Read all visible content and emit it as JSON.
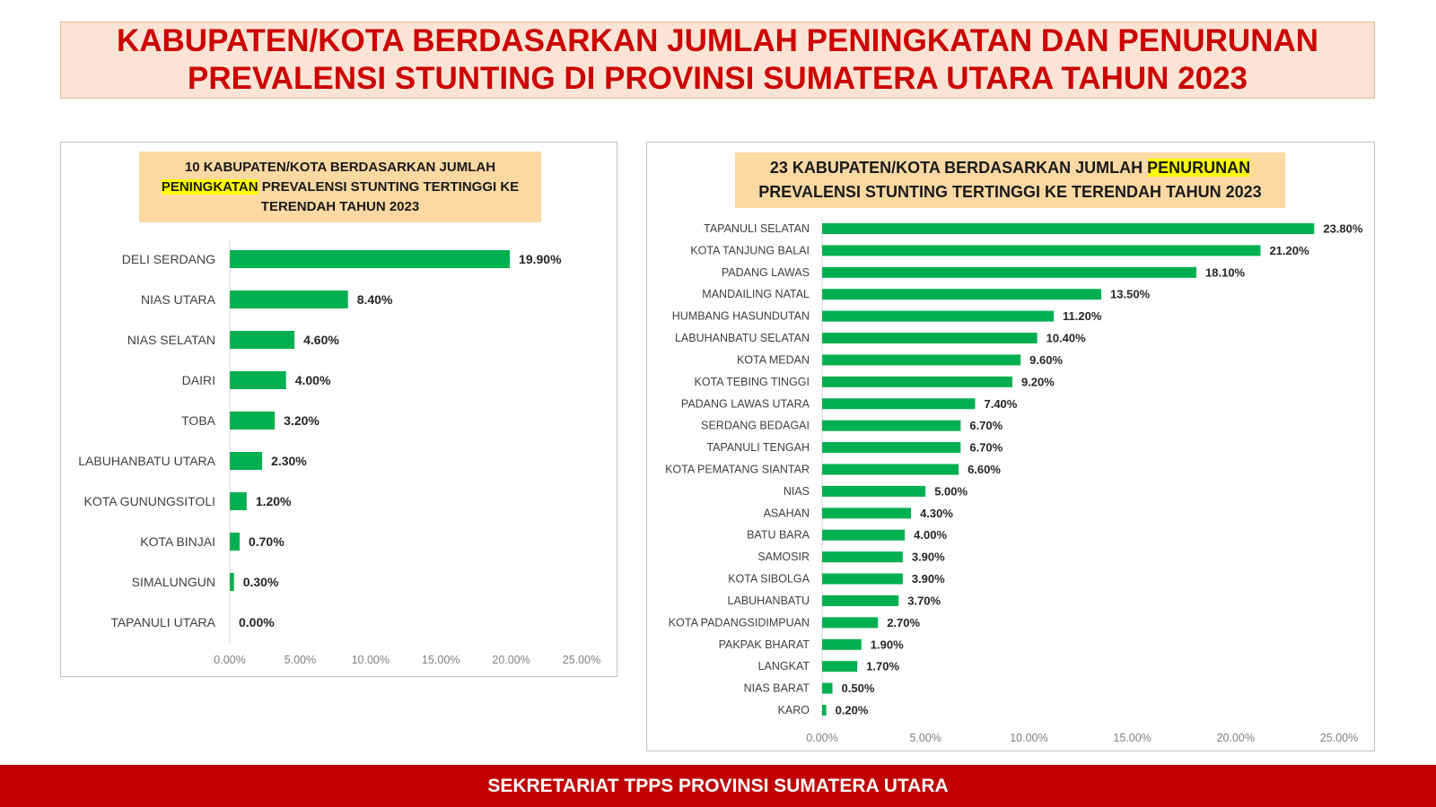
{
  "title": {
    "lines": [
      "KABUPATEN/KOTA BERDASARKAN JUMLAH PENINGKATAN DAN PENURUNAN",
      "PREVALENSI STUNTING DI PROVINSI SUMATERA UTARA TAHUN 2023"
    ]
  },
  "footer": {
    "text": "SEKRETARIAT TPPS PROVINSI SUMATERA UTARA"
  },
  "colors": {
    "title_text": "#cc0000",
    "title_bg": "#fbe4d5",
    "chart_title_bg": "#fcd8a2",
    "highlight": "#ffff00",
    "bar": "#00b050",
    "footer_bg": "#c00000",
    "footer_text": "#ffffff"
  },
  "chart_data": [
    {
      "type": "bar",
      "orientation": "horizontal",
      "title": {
        "before": "10 KABUPATEN/KOTA BERDASARKAN JUMLAH ",
        "highlight": "PENINGKATAN",
        "after": " PREVALENSI STUNTING TERTINGGI KE TERENDAH TAHUN 2023"
      },
      "categories": [
        "DELI SERDANG",
        "NIAS UTARA",
        "NIAS SELATAN",
        "DAIRI",
        "TOBA",
        "LABUHANBATU UTARA",
        "KOTA GUNUNGSITOLI",
        "KOTA BINJAI",
        "SIMALUNGUN",
        "TAPANULI UTARA"
      ],
      "values": [
        19.9,
        8.4,
        4.6,
        4.0,
        3.2,
        2.3,
        1.2,
        0.7,
        0.3,
        0.0
      ],
      "data_labels": [
        "19.90%",
        "8.40%",
        "4.60%",
        "4.00%",
        "3.20%",
        "2.30%",
        "1.20%",
        "0.70%",
        "0.30%",
        "0.00%"
      ],
      "xlim": [
        0,
        25
      ],
      "xticks": [
        0,
        5,
        10,
        15,
        20,
        25
      ],
      "xtick_labels": [
        "0.00%",
        "5.00%",
        "10.00%",
        "15.00%",
        "20.00%",
        "25.00%"
      ],
      "grid": false,
      "bar_color": "#00b050"
    },
    {
      "type": "bar",
      "orientation": "horizontal",
      "title": {
        "before": "23 KABUPATEN/KOTA BERDASARKAN JUMLAH ",
        "highlight": "PENURUNAN",
        "after": " PREVALENSI STUNTING TERTINGGI KE TERENDAH TAHUN 2023"
      },
      "categories": [
        "TAPANULI SELATAN",
        "KOTA TANJUNG BALAI",
        "PADANG LAWAS",
        "MANDAILING NATAL",
        "HUMBANG HASUNDUTAN",
        "LABUHANBATU SELATAN",
        "KOTA MEDAN",
        "KOTA TEBING TINGGI",
        "PADANG LAWAS UTARA",
        "SERDANG BEDAGAI",
        "TAPANULI TENGAH",
        "KOTA PEMATANG SIANTAR",
        "NIAS",
        "ASAHAN",
        "BATU BARA",
        "SAMOSIR",
        "KOTA SIBOLGA",
        "LABUHANBATU",
        "KOTA PADANGSIDIMPUAN",
        "PAKPAK BHARAT",
        "LANGKAT",
        "NIAS BARAT",
        "KARO"
      ],
      "values": [
        23.8,
        21.2,
        18.1,
        13.5,
        11.2,
        10.4,
        9.6,
        9.2,
        7.4,
        6.7,
        6.7,
        6.6,
        5.0,
        4.3,
        4.0,
        3.9,
        3.9,
        3.7,
        2.7,
        1.9,
        1.7,
        0.5,
        0.2
      ],
      "data_labels": [
        "23.80%",
        "21.20%",
        "18.10%",
        "13.50%",
        "11.20%",
        "10.40%",
        "9.60%",
        "9.20%",
        "7.40%",
        "6.70%",
        "6.70%",
        "6.60%",
        "5.00%",
        "4.30%",
        "4.00%",
        "3.90%",
        "3.90%",
        "3.70%",
        "2.70%",
        "1.90%",
        "1.70%",
        "0.50%",
        "0.20%"
      ],
      "xlim": [
        0,
        25
      ],
      "xticks": [
        0,
        5,
        10,
        15,
        20,
        25
      ],
      "xtick_labels": [
        "0.00%",
        "5.00%",
        "10.00%",
        "15.00%",
        "20.00%",
        "25.00%"
      ],
      "grid": false,
      "bar_color": "#00b050"
    }
  ]
}
